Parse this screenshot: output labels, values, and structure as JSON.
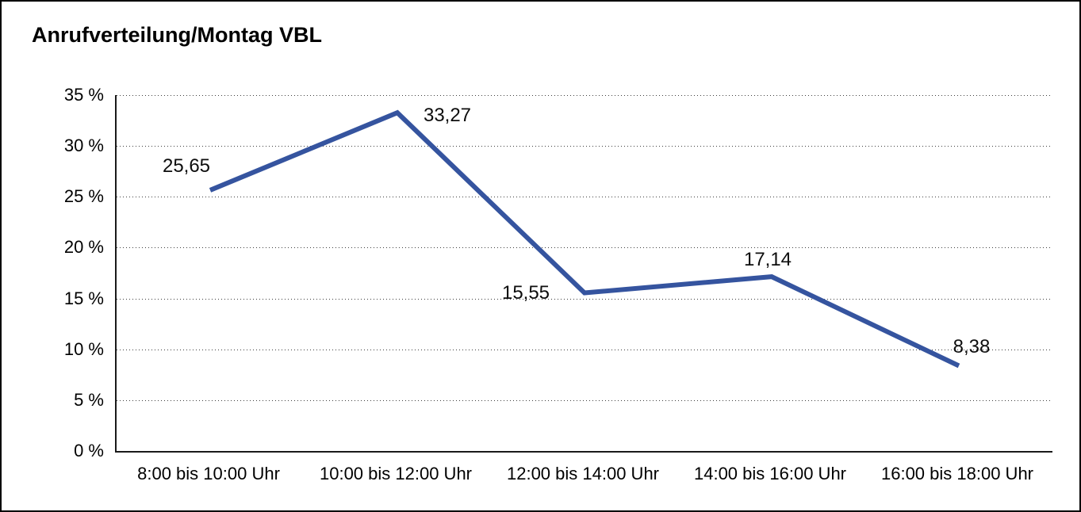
{
  "window": {
    "background_color": "#ffffff",
    "border_color": "#000000"
  },
  "chart_data": {
    "type": "line",
    "title": "Anrufverteilung/Montag VBL",
    "categories": [
      "8:00 bis 10:00 Uhr",
      "10:00 bis 12:00 Uhr",
      "12:00 bis 14:00 Uhr",
      "14:00 bis 16:00 Uhr",
      "16:00 bis 18:00 Uhr"
    ],
    "series": [
      {
        "values": [
          25.65,
          33.27,
          15.55,
          17.14,
          8.38
        ],
        "color": "#35549F",
        "line_width": 6,
        "point_labels": [
          {
            "text": "25,65",
            "dx": -30,
            "dy": -30
          },
          {
            "text": "33,27",
            "dx": 63,
            "dy": 4
          },
          {
            "text": "15,55",
            "dx": -74,
            "dy": 0
          },
          {
            "text": "17,14",
            "dx": -5,
            "dy": -21
          },
          {
            "text": "8,38",
            "dx": 16,
            "dy": -23
          }
        ]
      }
    ],
    "ylim": [
      0,
      35
    ],
    "yticks": [
      {
        "value": 35,
        "label": "35 %"
      },
      {
        "value": 30,
        "label": "30 %"
      },
      {
        "value": 25,
        "label": "25 %"
      },
      {
        "value": 20,
        "label": "20 %"
      },
      {
        "value": 15,
        "label": "15 %"
      },
      {
        "value": 10,
        "label": "10 %"
      },
      {
        "value": 5,
        "label": "5 %"
      },
      {
        "value": 0,
        "label": "0 %"
      }
    ],
    "xlabel": "",
    "ylabel": "",
    "grid": "horizontal-dotted",
    "legend": "none"
  }
}
